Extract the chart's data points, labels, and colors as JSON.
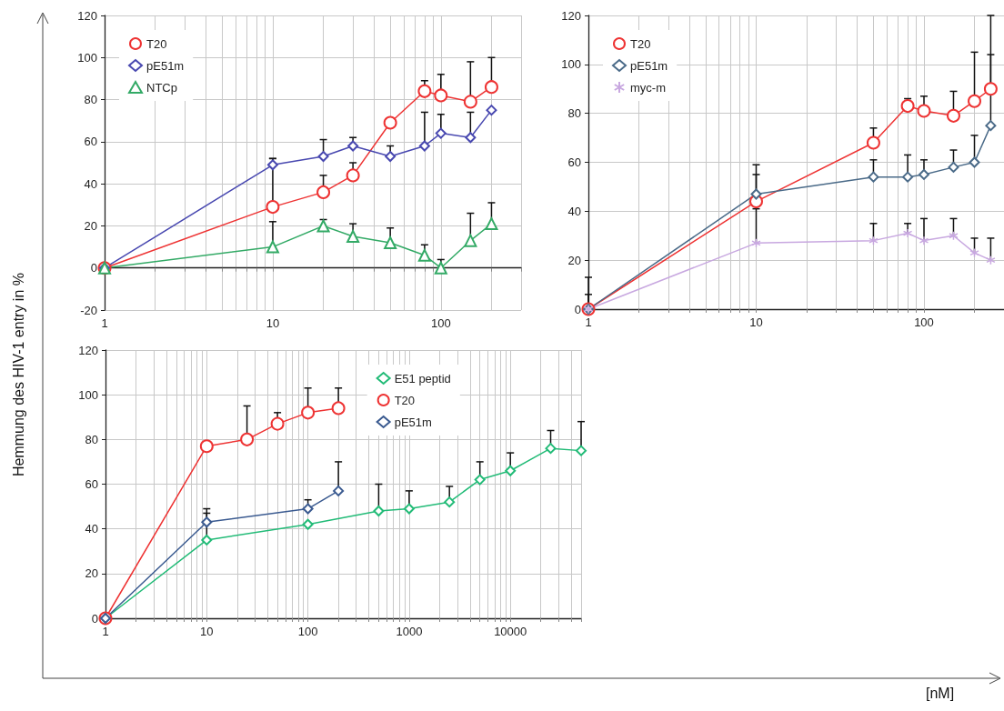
{
  "chart_data": [
    {
      "type": "line",
      "log": "x",
      "grid": true,
      "legend": "top left",
      "xlim": [
        1,
        300
      ],
      "ylim": [
        -20,
        120
      ],
      "xticks": [
        1,
        {
          "value": 2,
          "label": null
        },
        {
          "value": 3,
          "label": null
        },
        {
          "value": 4,
          "label": null
        },
        {
          "value": 5,
          "label": null
        },
        {
          "value": 6,
          "label": null
        },
        {
          "value": 7,
          "label": null
        },
        {
          "value": 8,
          "label": null
        },
        {
          "value": 9,
          "label": null
        },
        10,
        {
          "value": 20,
          "label": null
        },
        {
          "value": 30,
          "label": null
        },
        {
          "value": 40,
          "label": null
        },
        {
          "value": 50,
          "label": null
        },
        {
          "value": 60,
          "label": null
        },
        {
          "value": 70,
          "label": null
        },
        {
          "value": 80,
          "label": null
        },
        {
          "value": 90,
          "label": null
        },
        100,
        {
          "value": 200,
          "label": null
        },
        {
          "value": 300,
          "label": null
        }
      ],
      "yticks": [
        -20,
        0,
        20,
        40,
        60,
        80,
        100,
        120
      ],
      "series": [
        {
          "name": "T20",
          "color": "#ee3333",
          "marker": "circle",
          "x": [
            1,
            10,
            20,
            30,
            50,
            80,
            100,
            150,
            200
          ],
          "values": [
            0,
            29,
            36,
            44,
            69,
            84,
            82,
            79,
            86
          ],
          "errors": [
            null,
            [
              29,
              52
            ],
            [
              36,
              44
            ],
            [
              44,
              50
            ],
            null,
            [
              84,
              89
            ],
            [
              82,
              92
            ],
            [
              79,
              98
            ],
            [
              86,
              100
            ]
          ]
        },
        {
          "name": "pE51m",
          "color": "#4848b0",
          "marker": "diamond",
          "x": [
            1,
            10,
            20,
            30,
            50,
            80,
            100,
            150,
            200
          ],
          "values": [
            0,
            49,
            53,
            58,
            53,
            58,
            64,
            62,
            75
          ],
          "errors": [
            null,
            [
              49,
              52
            ],
            [
              53,
              61
            ],
            [
              58,
              62
            ],
            [
              53,
              58
            ],
            [
              58,
              74
            ],
            [
              64,
              73
            ],
            [
              62,
              74
            ],
            null
          ]
        },
        {
          "name": "NTCp",
          "color": "#33aa66",
          "marker": "triangle",
          "x": [
            1,
            10,
            20,
            30,
            50,
            80,
            100,
            150,
            200
          ],
          "values": [
            0,
            10,
            20,
            15,
            12,
            6,
            0,
            13,
            21
          ],
          "errors": [
            null,
            [
              10,
              22
            ],
            [
              20,
              23
            ],
            [
              15,
              21
            ],
            [
              12,
              19
            ],
            [
              6,
              11
            ],
            [
              0,
              4
            ],
            [
              13,
              26
            ],
            [
              21,
              31
            ]
          ]
        }
      ]
    },
    {
      "type": "line",
      "log": "x",
      "grid": true,
      "legend": "top left",
      "xlim": [
        1,
        300
      ],
      "ylim": [
        0,
        120
      ],
      "xlabel": "[nM]",
      "xticks": [
        1,
        {
          "value": 2,
          "label": null
        },
        {
          "value": 3,
          "label": null
        },
        {
          "value": 4,
          "label": null
        },
        {
          "value": 5,
          "label": null
        },
        {
          "value": 6,
          "label": null
        },
        {
          "value": 7,
          "label": null
        },
        {
          "value": 8,
          "label": null
        },
        {
          "value": 9,
          "label": null
        },
        10,
        {
          "value": 20,
          "label": null
        },
        {
          "value": 30,
          "label": null
        },
        {
          "value": 40,
          "label": null
        },
        {
          "value": 50,
          "label": null
        },
        {
          "value": 60,
          "label": null
        },
        {
          "value": 70,
          "label": null
        },
        {
          "value": 80,
          "label": null
        },
        {
          "value": 90,
          "label": null
        },
        100,
        {
          "value": 200,
          "label": null
        },
        {
          "value": 300,
          "label": null
        }
      ],
      "yticks": [
        0,
        20,
        40,
        60,
        80,
        100,
        120
      ],
      "series": [
        {
          "name": "T20",
          "color": "#ee3333",
          "marker": "circle",
          "x": [
            1,
            10,
            50,
            80,
            100,
            150,
            200,
            250
          ],
          "values": [
            0,
            44,
            68,
            83,
            81,
            79,
            85,
            90
          ],
          "errors": [
            [
              0,
              6
            ],
            [
              44,
              55
            ],
            [
              68,
              74
            ],
            [
              83,
              86
            ],
            [
              81,
              87
            ],
            [
              79,
              89
            ],
            [
              85,
              105
            ],
            [
              90,
              120
            ]
          ]
        },
        {
          "name": "pE51m",
          "color": "#4a6a88",
          "marker": "diamond",
          "x": [
            1,
            10,
            50,
            80,
            100,
            150,
            200,
            250
          ],
          "values": [
            0,
            47,
            54,
            54,
            55,
            58,
            60,
            75
          ],
          "errors": [
            [
              0,
              13
            ],
            [
              47,
              59
            ],
            [
              54,
              61
            ],
            [
              54,
              63
            ],
            [
              55,
              61
            ],
            [
              58,
              65
            ],
            [
              60,
              71
            ],
            [
              75,
              104
            ]
          ]
        },
        {
          "name": "myc-m",
          "color": "#c8a8e0",
          "marker": "cross",
          "x": [
            1,
            10,
            50,
            80,
            100,
            150,
            200,
            250
          ],
          "values": [
            0,
            27,
            28,
            31,
            28,
            30,
            23,
            20
          ],
          "errors": [
            null,
            [
              27,
              41
            ],
            [
              28,
              35
            ],
            [
              31,
              35
            ],
            [
              28,
              37
            ],
            [
              30,
              37
            ],
            [
              23,
              29
            ],
            [
              20,
              29
            ]
          ]
        }
      ]
    },
    {
      "type": "line",
      "log": "x",
      "grid": true,
      "legend": "top right",
      "xlim": [
        1,
        50000
      ],
      "ylim": [
        0,
        120
      ],
      "ylabel": "Hemmung des HIV-1 entry in %",
      "xticks": [
        1,
        {
          "value": 2,
          "label": null
        },
        {
          "value": 3,
          "label": null
        },
        {
          "value": 4,
          "label": null
        },
        {
          "value": 5,
          "label": null
        },
        {
          "value": 6,
          "label": null
        },
        {
          "value": 7,
          "label": null
        },
        {
          "value": 8,
          "label": null
        },
        {
          "value": 9,
          "label": null
        },
        10,
        {
          "value": 20,
          "label": null
        },
        {
          "value": 30,
          "label": null
        },
        {
          "value": 40,
          "label": null
        },
        {
          "value": 50,
          "label": null
        },
        {
          "value": 60,
          "label": null
        },
        {
          "value": 70,
          "label": null
        },
        {
          "value": 80,
          "label": null
        },
        {
          "value": 90,
          "label": null
        },
        100,
        {
          "value": 200,
          "label": null
        },
        {
          "value": 300,
          "label": null
        },
        {
          "value": 400,
          "label": null
        },
        {
          "value": 500,
          "label": null
        },
        {
          "value": 600,
          "label": null
        },
        {
          "value": 700,
          "label": null
        },
        {
          "value": 800,
          "label": null
        },
        {
          "value": 900,
          "label": null
        },
        1000,
        {
          "value": 2000,
          "label": null
        },
        {
          "value": 3000,
          "label": null
        },
        {
          "value": 4000,
          "label": null
        },
        {
          "value": 5000,
          "label": null
        },
        {
          "value": 6000,
          "label": null
        },
        {
          "value": 7000,
          "label": null
        },
        {
          "value": 8000,
          "label": null
        },
        {
          "value": 9000,
          "label": null
        },
        10000,
        {
          "value": 20000,
          "label": null
        },
        {
          "value": 30000,
          "label": null
        },
        {
          "value": 40000,
          "label": null
        },
        {
          "value": 50000,
          "label": null
        }
      ],
      "yticks": [
        0,
        20,
        40,
        60,
        80,
        100,
        120
      ],
      "series": [
        {
          "name": "E51 peptid",
          "color": "#22bb77",
          "marker": "diamond",
          "x": [
            1,
            10,
            100,
            500,
            1000,
            2500,
            5000,
            10000,
            25000,
            50000
          ],
          "values": [
            0,
            35,
            42,
            48,
            49,
            52,
            62,
            66,
            76,
            75
          ],
          "errors": [
            null,
            [
              35,
              47
            ],
            null,
            [
              48,
              60
            ],
            [
              49,
              57
            ],
            [
              52,
              59
            ],
            [
              62,
              70
            ],
            [
              66,
              74
            ],
            [
              76,
              84
            ],
            [
              75,
              88
            ]
          ]
        },
        {
          "name": "T20",
          "color": "#ee3333",
          "marker": "circle",
          "x": [
            1,
            10,
            25,
            50,
            100,
            200
          ],
          "values": [
            0,
            77,
            80,
            87,
            92,
            94
          ],
          "errors": [
            null,
            null,
            [
              80,
              95
            ],
            [
              87,
              92
            ],
            [
              92,
              103
            ],
            [
              94,
              103
            ]
          ]
        },
        {
          "name": "pE51m",
          "color": "#3a5a90",
          "marker": "diamond",
          "x": [
            1,
            10,
            100,
            200
          ],
          "values": [
            0,
            43,
            49,
            57
          ],
          "errors": [
            null,
            [
              43,
              49
            ],
            [
              49,
              53
            ],
            [
              57,
              70
            ]
          ]
        }
      ]
    }
  ]
}
